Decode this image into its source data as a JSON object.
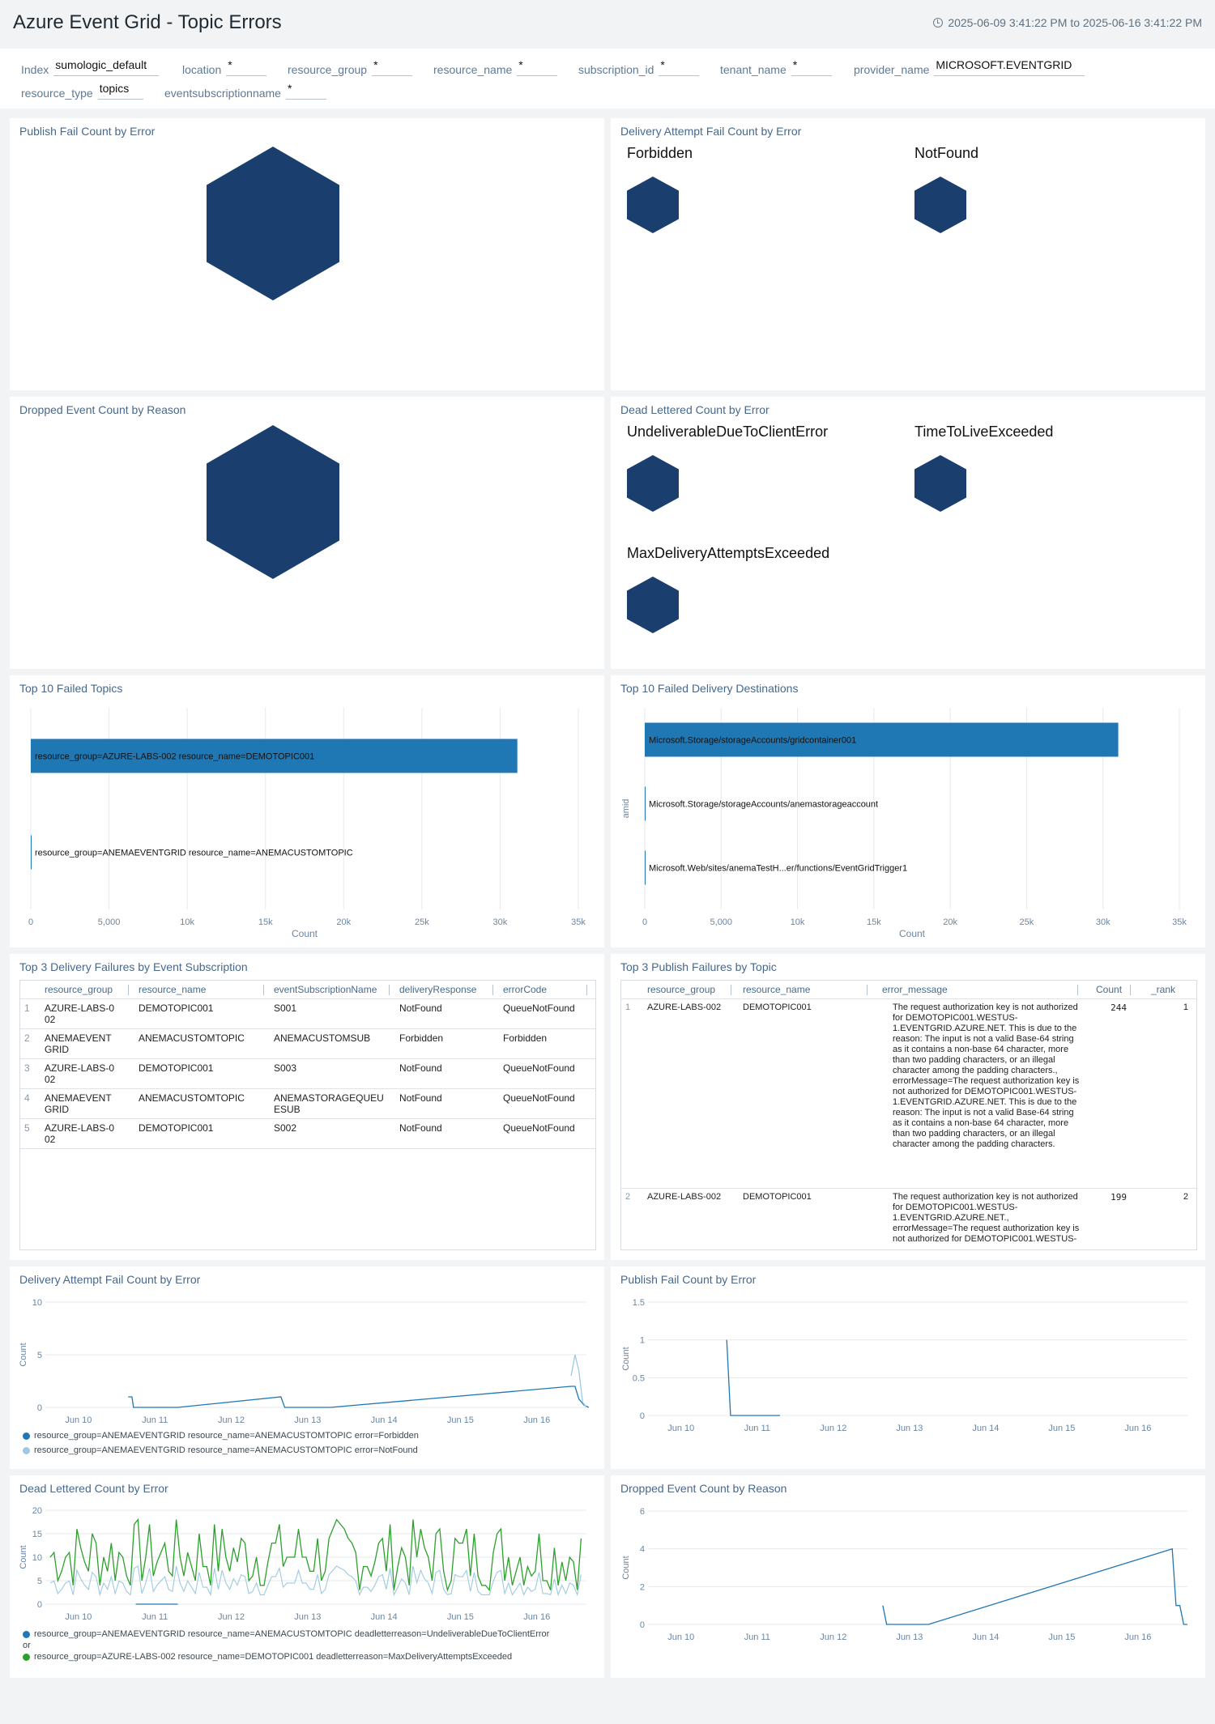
{
  "header": {
    "title": "Azure Event Grid - Topic Errors",
    "time_range": "2025-06-09 3:41:22 PM to 2025-06-16 3:41:22 PM"
  },
  "filters": [
    {
      "label": "Index",
      "value": "sumologic_default"
    },
    {
      "label": "location",
      "value": "*"
    },
    {
      "label": "resource_group",
      "value": "*"
    },
    {
      "label": "resource_name",
      "value": "*"
    },
    {
      "label": "subscription_id",
      "value": "*"
    },
    {
      "label": "tenant_name",
      "value": "*"
    },
    {
      "label": "provider_name",
      "value": "MICROSOFT.EVENTGRID"
    },
    {
      "label": "resource_type",
      "value": "topics"
    },
    {
      "label": "eventsubscriptionname",
      "value": "*"
    }
  ],
  "panels": {
    "publish_fail_hex": {
      "title": "Publish Fail Count by Error"
    },
    "delivery_fail_hex": {
      "title": "Delivery Attempt Fail Count by Error",
      "items": [
        "Forbidden",
        "NotFound"
      ]
    },
    "dropped_hex": {
      "title": "Dropped Event Count by Reason"
    },
    "dead_lettered_hex": {
      "title": "Dead Lettered Count by Error",
      "items": [
        "UndeliverableDueToClientError",
        "TimeToLiveExceeded",
        "MaxDeliveryAttemptsExceeded"
      ]
    },
    "top_failed_topics": {
      "title": "Top 10 Failed Topics"
    },
    "top_failed_destinations": {
      "title": "Top 10 Failed Delivery Destinations"
    },
    "top_delivery_failures": {
      "title": "Top 3 Delivery Failures by Event Subscription",
      "columns": [
        "resource_group",
        "resource_name",
        "eventSubscriptionName",
        "deliveryResponse",
        "errorCode"
      ],
      "rows": [
        {
          "n": "1",
          "rg": "AZURE-LABS-002",
          "rn": "DEMOTOPIC001",
          "es": "S001",
          "dr": "NotFound",
          "ec": "QueueNotFound"
        },
        {
          "n": "2",
          "rg": "ANEMAEVENTGRID",
          "rn": "ANEMACUSTOMTOPIC",
          "es": "ANEMACUSTOMSUB",
          "dr": "Forbidden",
          "ec": "Forbidden"
        },
        {
          "n": "3",
          "rg": "AZURE-LABS-002",
          "rn": "DEMOTOPIC001",
          "es": "S003",
          "dr": "NotFound",
          "ec": "QueueNotFound"
        },
        {
          "n": "4",
          "rg": "ANEMAEVENTGRID",
          "rn": "ANEMACUSTOMTOPIC",
          "es": "ANEMASTORAGEQUEUESUB",
          "dr": "NotFound",
          "ec": "QueueNotFound"
        },
        {
          "n": "5",
          "rg": "AZURE-LABS-002",
          "rn": "DEMOTOPIC001",
          "es": "S002",
          "dr": "NotFound",
          "ec": "QueueNotFound"
        }
      ]
    },
    "top_publish_failures": {
      "title": "Top 3 Publish Failures by Topic",
      "columns": [
        "resource_group",
        "resource_name",
        "error_message",
        "Count",
        "_rank"
      ],
      "rows": [
        {
          "n": "1",
          "rg": "AZURE-LABS-002",
          "rn": "DEMOTOPIC001",
          "msg": "The request authorization key is not authorized for DEMOTOPIC001.WESTUS-1.EVENTGRID.AZURE.NET. This is due to the reason: The input is not a valid Base-64 string as it contains a non-base 64 character, more than two padding characters, or an illegal character among the padding characters., errorMessage=The request authorization key is not authorized for DEMOTOPIC001.WESTUS-1.EVENTGRID.AZURE.NET. This is due to the reason: The input is not a valid Base-64 string as it contains a non-base 64 character, more than two padding characters, or an illegal character among the padding characters.",
          "count": "244",
          "rank": "1"
        },
        {
          "n": "2",
          "rg": "AZURE-LABS-002",
          "rn": "DEMOTOPIC001",
          "msg": "The request authorization key is not authorized for DEMOTOPIC001.WESTUS-1.EVENTGRID.AZURE.NET., errorMessage=The request authorization key is not authorized for DEMOTOPIC001.WESTUS-",
          "count": "199",
          "rank": "2"
        }
      ]
    },
    "delivery_fail_ts": {
      "title": "Delivery Attempt Fail Count by Error"
    },
    "publish_fail_ts": {
      "title": "Publish Fail Count by Error"
    },
    "dead_lettered_ts": {
      "title": "Dead Lettered Count by Error"
    },
    "dropped_ts": {
      "title": "Dropped Event Count by Reason"
    }
  },
  "colors": {
    "hex": "#1a3f6e",
    "bar": "#1f77b4",
    "line_dark": "#1f77b4",
    "line_light": "#9ecae1",
    "line_green": "#2ca02c"
  },
  "chart_data": [
    {
      "id": "top_failed_topics",
      "type": "bar",
      "orientation": "horizontal",
      "categories": [
        "resource_group=AZURE-LABS-002 resource_name=DEMOTOPIC001",
        "resource_group=ANEMAEVENTGRID resource_name=ANEMACUSTOMTOPIC"
      ],
      "values": [
        31100,
        30
      ],
      "xlabel": "Count",
      "xlim": [
        0,
        35000
      ],
      "ticks": [
        0,
        5000,
        10000,
        15000,
        20000,
        25000,
        30000,
        35000
      ],
      "tick_labels": [
        "0",
        "5,000",
        "10k",
        "15k",
        "20k",
        "25k",
        "30k",
        "35k"
      ]
    },
    {
      "id": "top_failed_destinations",
      "type": "bar",
      "orientation": "horizontal",
      "categories": [
        "Microsoft.Storage/storageAccounts/gridcontainer001",
        "Microsoft.Storage/storageAccounts/anemastorageaccount",
        "Microsoft.Web/sites/anemaTestH...er/functions/EventGridTrigger1"
      ],
      "values": [
        31000,
        20,
        20
      ],
      "xlabel": "Count",
      "ylabel": "amid",
      "xlim": [
        0,
        35000
      ],
      "ticks": [
        0,
        5000,
        10000,
        15000,
        20000,
        25000,
        30000,
        35000
      ],
      "tick_labels": [
        "0",
        "5,000",
        "10k",
        "15k",
        "20k",
        "25k",
        "30k",
        "35k"
      ]
    },
    {
      "id": "delivery_fail_ts",
      "type": "line",
      "xlabel": "",
      "ylabel": "Count",
      "ylim": [
        0,
        10
      ],
      "yticks": [
        0,
        5,
        10
      ],
      "x_labels": [
        "Jun 10",
        "Jun 11",
        "Jun 12",
        "Jun 13",
        "Jun 14",
        "Jun 15",
        "Jun 16"
      ],
      "series": [
        {
          "name": "resource_group=ANEMAEVENTGRID resource_name=ANEMACUSTOMTOPIC error=Forbidden",
          "color": "#1f77b4",
          "points": [
            [
              10.65,
              1
            ],
            [
              10.7,
              1
            ],
            [
              10.72,
              0
            ],
            [
              11.3,
              0
            ],
            [
              12.65,
              1
            ],
            [
              12.7,
              0
            ],
            [
              13.3,
              0
            ],
            [
              16.45,
              2
            ],
            [
              16.5,
              2
            ],
            [
              16.55,
              0.8
            ],
            [
              16.62,
              0.2
            ],
            [
              16.68,
              0
            ]
          ]
        },
        {
          "name": "resource_group=ANEMAEVENTGRID resource_name=ANEMACUSTOMTOPIC error=NotFound",
          "color": "#9ecae1",
          "points": [
            [
              16.45,
              3
            ],
            [
              16.5,
              5
            ],
            [
              16.55,
              3.5
            ],
            [
              16.6,
              0.5
            ],
            [
              16.65,
              0
            ]
          ]
        }
      ]
    },
    {
      "id": "publish_fail_ts",
      "type": "line",
      "ylabel": "Count",
      "ylim": [
        0,
        1.5
      ],
      "yticks": [
        0,
        0.5,
        1,
        1.5
      ],
      "x_labels": [
        "Jun 10",
        "Jun 11",
        "Jun 12",
        "Jun 13",
        "Jun 14",
        "Jun 15",
        "Jun 16"
      ],
      "series": [
        {
          "name": "",
          "color": "#1f77b4",
          "points": [
            [
              10.6,
              1
            ],
            [
              10.65,
              0
            ],
            [
              11.3,
              0
            ]
          ]
        }
      ]
    },
    {
      "id": "dead_lettered_ts",
      "type": "line",
      "ylabel": "Count",
      "ylim": [
        0,
        20
      ],
      "yticks": [
        0,
        5,
        10,
        15,
        20
      ],
      "x_labels": [
        "Jun 10",
        "Jun 11",
        "Jun 12",
        "Jun 13",
        "Jun 14",
        "Jun 15",
        "Jun 16"
      ],
      "series": [
        {
          "name": "resource_group=ANEMAEVENTGRID resource_name=ANEMACUSTOMTOPIC deadletterreason=UndeliverableDueToClientError",
          "color": "#1f77b4",
          "points": [
            [
              10.75,
              0
            ],
            [
              11.3,
              0
            ]
          ]
        },
        {
          "name": "resource_group=AZURE-LABS-002 resource_name=DEMOTOPIC001 deadletterreason=MaxDeliveryAttemptsExceeded",
          "color": "#2ca02c",
          "points": "noisy"
        }
      ]
    },
    {
      "id": "dropped_ts",
      "type": "line",
      "ylabel": "Count",
      "ylim": [
        0,
        6
      ],
      "yticks": [
        0,
        2,
        4,
        6
      ],
      "x_labels": [
        "Jun 10",
        "Jun 11",
        "Jun 12",
        "Jun 13",
        "Jun 14",
        "Jun 15",
        "Jun 16"
      ],
      "series": [
        {
          "name": "",
          "color": "#1f77b4",
          "points": [
            [
              12.65,
              1
            ],
            [
              12.7,
              0
            ],
            [
              13.25,
              0
            ],
            [
              16.45,
              4
            ],
            [
              16.5,
              1
            ],
            [
              16.55,
              1
            ],
            [
              16.6,
              0
            ],
            [
              16.65,
              0
            ]
          ]
        }
      ]
    }
  ],
  "legends": {
    "delivery_fail_ts": [
      "resource_group=ANEMAEVENTGRID resource_name=ANEMACUSTOMTOPIC error=Forbidden",
      "resource_group=ANEMAEVENTGRID resource_name=ANEMACUSTOMTOPIC error=NotFound"
    ],
    "dead_lettered_ts": [
      "resource_group=ANEMAEVENTGRID resource_name=ANEMACUSTOMTOPIC deadletterreason=UndeliverableDueToClientError",
      "or",
      "resource_group=AZURE-LABS-002 resource_name=DEMOTOPIC001 deadletterreason=MaxDeliveryAttemptsExceeded"
    ]
  }
}
